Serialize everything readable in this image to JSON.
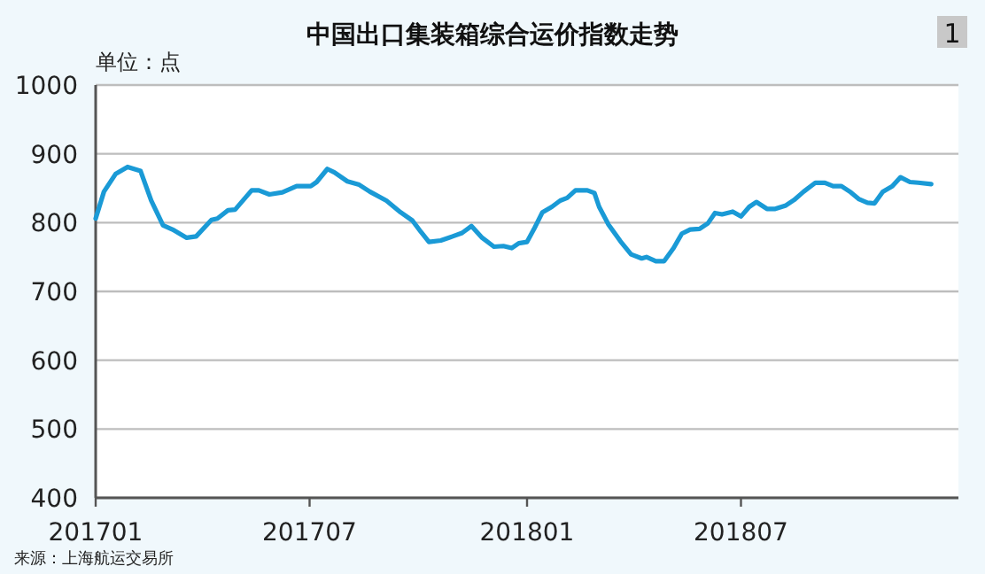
{
  "chart_data": {
    "type": "line",
    "title": "中国出口集装箱综合运价指数走势",
    "ylabel": "单位：点",
    "annotations": [
      "1",
      "来源：上海航运交易所"
    ],
    "x": [
      "2017-01-01",
      "2017-01-08",
      "2017-01-18",
      "2017-01-28",
      "2017-02-08",
      "2017-02-17",
      "2017-02-27",
      "2017-03-07",
      "2017-03-19",
      "2017-03-27",
      "2017-04-09",
      "2017-04-14",
      "2017-04-23",
      "2017-04-29",
      "2017-05-13",
      "2017-05-19",
      "2017-05-28",
      "2017-06-08",
      "2017-06-20",
      "2017-07-02",
      "2017-07-07",
      "2017-07-16",
      "2017-07-22",
      "2017-08-02",
      "2017-08-12",
      "2017-08-21",
      "2017-09-04",
      "2017-09-16",
      "2017-09-26",
      "2017-10-03",
      "2017-10-10",
      "2017-10-20",
      "2017-10-30",
      "2017-11-07",
      "2017-11-15",
      "2017-11-24",
      "2017-12-04",
      "2017-12-12",
      "2017-12-19",
      "2017-12-25",
      "2018-01-01",
      "2018-01-07",
      "2018-01-14",
      "2018-01-22",
      "2018-01-29",
      "2018-02-04",
      "2018-02-11",
      "2018-02-21",
      "2018-02-27",
      "2018-03-03",
      "2018-03-11",
      "2018-03-21",
      "2018-03-30",
      "2018-04-08",
      "2018-04-12",
      "2018-04-20",
      "2018-04-27",
      "2018-05-05",
      "2018-05-12",
      "2018-05-19",
      "2018-05-27",
      "2018-06-03",
      "2018-06-09",
      "2018-06-15",
      "2018-06-24",
      "2018-07-01",
      "2018-07-08",
      "2018-07-14",
      "2018-07-23",
      "2018-07-30",
      "2018-08-08",
      "2018-08-15",
      "2018-08-23",
      "2018-09-02",
      "2018-09-10",
      "2018-09-17",
      "2018-09-24",
      "2018-10-02",
      "2018-10-09",
      "2018-10-16",
      "2018-10-22",
      "2018-10-29",
      "2018-11-06",
      "2018-11-13",
      "2018-11-21",
      "2018-11-28",
      "2018-12-09"
    ],
    "series": [
      {
        "color": "#1a9ad6",
        "values": [
          806,
          845,
          871,
          881,
          875,
          832,
          796,
          790,
          778,
          780,
          804,
          806,
          818,
          819,
          847,
          847,
          841,
          844,
          853,
          853,
          859,
          878,
          873,
          860,
          855,
          845,
          832,
          815,
          803,
          787,
          772,
          774,
          780,
          785,
          795,
          778,
          765,
          766,
          763,
          770,
          772,
          791,
          815,
          823,
          832,
          836,
          847,
          847,
          843,
          823,
          797,
          773,
          754,
          748,
          750,
          744,
          744,
          763,
          784,
          790,
          791,
          799,
          814,
          812,
          816,
          809,
          823,
          830,
          820,
          820,
          825,
          833,
          845,
          858,
          858,
          853,
          853,
          844,
          834,
          829,
          828,
          845,
          853,
          866,
          859,
          858,
          856
        ]
      }
    ],
    "xlim": [
      "2017-01-01",
      "2019-01-01"
    ],
    "xticks": [
      {
        "value": "2017-01-01",
        "label": "201701"
      },
      {
        "value": "2017-07-01",
        "label": "201707"
      },
      {
        "value": "2018-01-01",
        "label": "201801"
      },
      {
        "value": "2018-07-01",
        "label": "201807"
      }
    ],
    "ylim": [
      400,
      1000
    ],
    "yticks": [
      400,
      500,
      600,
      700,
      800,
      900,
      1000
    ],
    "grid": "y",
    "marker": "none",
    "line_style": "solid"
  }
}
